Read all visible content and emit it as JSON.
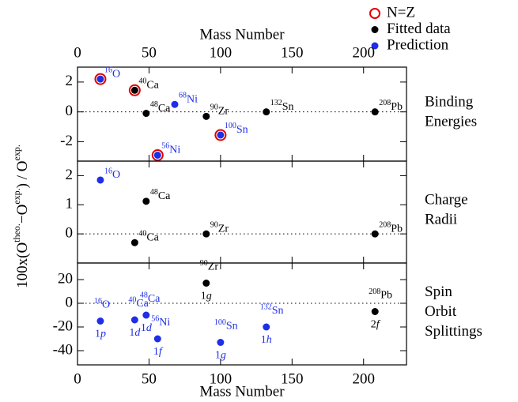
{
  "figure": {
    "y_label": [
      "100x(O",
      "theo.",
      "−O",
      "exp.",
      ") / O",
      "exp."
    ],
    "x_label_top": "Mass Number",
    "x_label_bottom": "Mass Number",
    "xlim": [
      0,
      230
    ],
    "xticks": [
      0,
      50,
      100,
      150,
      200
    ],
    "legend": [
      {
        "name": "N=Z",
        "color": "#e00000",
        "marker": "ring"
      },
      {
        "name": "Fitted data",
        "color": "#000000",
        "marker": "dot"
      },
      {
        "name": "Prediction",
        "color": "#1f2ee8",
        "marker": "dot"
      }
    ]
  },
  "chart_data": [
    {
      "type": "scatter",
      "panel_label": [
        "Binding",
        "Energies"
      ],
      "ylim": [
        -3.3,
        3
      ],
      "yticks": [
        -2,
        0,
        2
      ],
      "hline": 0,
      "series": [
        {
          "color": "#e00000",
          "marker": "ring",
          "x": [
            16,
            40,
            100,
            56
          ],
          "values": [
            2.2,
            1.45,
            -1.55,
            -2.9
          ]
        },
        {
          "color": "#000000",
          "marker": "dot",
          "x": [
            40,
            48,
            90,
            132,
            208
          ],
          "values": [
            1.45,
            -0.1,
            -0.3,
            0,
            0
          ],
          "labels": [
            "Ca",
            "Ca",
            "Zr",
            "Sn",
            "Pb"
          ]
        },
        {
          "color": "#1f2ee8",
          "marker": "dot",
          "x": [
            16,
            68,
            100,
            56
          ],
          "values": [
            2.2,
            0.5,
            -1.55,
            -2.9
          ],
          "labels": [
            "O",
            "Ni",
            "Sn",
            "Ni"
          ]
        }
      ]
    },
    {
      "type": "scatter",
      "panel_label": [
        "Charge",
        "Radii"
      ],
      "ylim": [
        -1,
        2.5
      ],
      "yticks": [
        0,
        1,
        2
      ],
      "hline": 0,
      "series": [
        {
          "color": "#000000",
          "marker": "dot",
          "x": [
            48,
            40,
            90,
            208
          ],
          "values": [
            1.12,
            -0.3,
            0,
            0
          ],
          "labels": [
            "Ca",
            "Ca",
            "Zr",
            "Pb"
          ]
        },
        {
          "color": "#1f2ee8",
          "marker": "dot",
          "x": [
            16
          ],
          "values": [
            1.85
          ],
          "labels": [
            "O"
          ]
        }
      ]
    },
    {
      "type": "scatter",
      "panel_label": [
        "Spin",
        "Orbit",
        "Splittings"
      ],
      "ylim": [
        -52,
        34
      ],
      "yticks": [
        -40,
        -20,
        0,
        20
      ],
      "hline": 0,
      "series": [
        {
          "color": "#000000",
          "marker": "dot",
          "x": [
            90,
            208
          ],
          "values": [
            17,
            -7
          ],
          "labels": [
            "Zr",
            "Pb"
          ],
          "orbitals": [
            "1g",
            "2f"
          ]
        },
        {
          "color": "#1f2ee8",
          "marker": "dot",
          "x": [
            16,
            40,
            48,
            56,
            100,
            132
          ],
          "values": [
            -15,
            -14,
            -10,
            -30,
            -33,
            -20
          ],
          "labels": [
            "O",
            "Ca",
            "Ca",
            "Ni",
            "Sn",
            "Sn"
          ],
          "orbitals": [
            "1p",
            "1d",
            "1d",
            "1f",
            "1g",
            "1h"
          ]
        }
      ]
    }
  ]
}
